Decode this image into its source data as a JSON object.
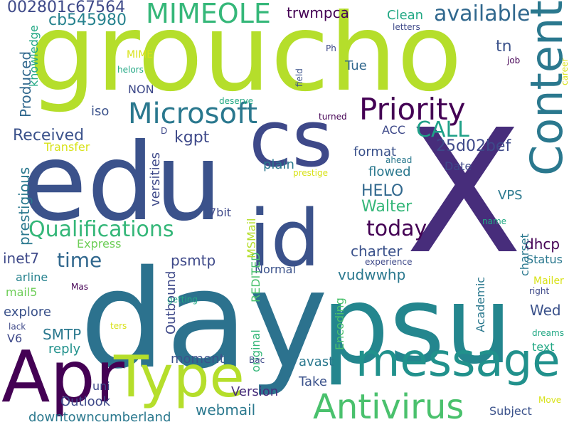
{
  "words": [
    {
      "text": "groucho",
      "color": "#b5de2b"
    },
    {
      "text": "X",
      "color": "#472d7b"
    },
    {
      "text": "day",
      "color": "#2c728e"
    },
    {
      "text": "psu",
      "color": "#24868e"
    },
    {
      "text": "edu",
      "color": "#3b528b"
    },
    {
      "text": "cs",
      "color": "#3e4989"
    },
    {
      "text": "id",
      "color": "#3b528b"
    },
    {
      "text": "Apr",
      "color": "#440154"
    },
    {
      "text": "message",
      "color": "#21918c"
    },
    {
      "text": "Type",
      "color": "#b5de2b"
    },
    {
      "text": "Content",
      "color": "#2a788e"
    },
    {
      "text": "Antivirus",
      "color": "#4ac16d"
    },
    {
      "text": "Priority",
      "color": "#440154"
    },
    {
      "text": "Microsoft",
      "color": "#2a788e"
    },
    {
      "text": "MIMEOLE",
      "color": "#35b779"
    },
    {
      "text": "Qualifications",
      "color": "#35b779"
    },
    {
      "text": "available",
      "color": "#31688e"
    },
    {
      "text": "002801c67564",
      "color": "#3e4989"
    },
    {
      "text": "cb545980",
      "color": "#26828e"
    },
    {
      "text": "CALL",
      "color": "#1fa188"
    },
    {
      "text": "today",
      "color": "#440154"
    },
    {
      "text": "time",
      "color": "#31688e"
    },
    {
      "text": "25d02bef",
      "color": "#3e4989"
    },
    {
      "text": "Received",
      "color": "#3b528b"
    },
    {
      "text": "HELO",
      "color": "#31688e"
    },
    {
      "text": "Walter",
      "color": "#35b779"
    },
    {
      "text": "trwmpca",
      "color": "#440154"
    },
    {
      "text": "kgpt",
      "color": "#3e4989"
    },
    {
      "text": "webmail",
      "color": "#2a788e"
    },
    {
      "text": "Outlook",
      "color": "#3e4989"
    },
    {
      "text": "downtowncumberland",
      "color": "#2a788e"
    },
    {
      "text": "Version",
      "color": "#472d7b"
    },
    {
      "text": "Subject",
      "color": "#3b528b"
    },
    {
      "text": "charter",
      "color": "#3b528b"
    },
    {
      "text": "dhcp",
      "color": "#440154"
    },
    {
      "text": "format",
      "color": "#3b528b"
    },
    {
      "text": "plain",
      "color": "#2a788e"
    },
    {
      "text": "flowed",
      "color": "#2a788e"
    },
    {
      "text": "inet7",
      "color": "#3e4989"
    },
    {
      "text": "psmtp",
      "color": "#3e4989"
    },
    {
      "text": "vudwwhp",
      "color": "#2a788e"
    },
    {
      "text": "Normal",
      "color": "#3b528b"
    },
    {
      "text": "Wed",
      "color": "#3b528b"
    },
    {
      "text": "SMTP",
      "color": "#2a788e"
    },
    {
      "text": "explore",
      "color": "#3b528b"
    },
    {
      "text": "moment",
      "color": "#3b528b"
    },
    {
      "text": "Take",
      "color": "#3b528b"
    },
    {
      "text": "avast",
      "color": "#2a788e"
    },
    {
      "text": "reply",
      "color": "#21918c"
    },
    {
      "text": "Produced",
      "color": "#31688e"
    },
    {
      "text": "prestigious",
      "color": "#2a788e"
    },
    {
      "text": "versities",
      "color": "#3e4989"
    },
    {
      "text": "Outbound",
      "color": "#3e4989"
    },
    {
      "text": "original",
      "color": "#35b779"
    },
    {
      "text": "REDITED",
      "color": "#4ac16d"
    },
    {
      "text": "MSMail",
      "color": "#b5de2b"
    },
    {
      "text": "Encoding",
      "color": "#4ac16d"
    },
    {
      "text": "Academic",
      "color": "#2a788e"
    },
    {
      "text": "charset",
      "color": "#2a788e"
    },
    {
      "text": "knowledge",
      "color": "#22a884"
    },
    {
      "text": "Tue",
      "color": "#31688e"
    },
    {
      "text": "tn",
      "color": "#3b528b"
    },
    {
      "text": "Clean",
      "color": "#22a884"
    },
    {
      "text": "NON",
      "color": "#3e4989"
    },
    {
      "text": "iso",
      "color": "#3b528b"
    },
    {
      "text": "ACC",
      "color": "#3e4989"
    },
    {
      "text": "Date",
      "color": "#3e4989"
    },
    {
      "text": "VPS",
      "color": "#2a788e"
    },
    {
      "text": "7bit",
      "color": "#3e4989"
    },
    {
      "text": "Status",
      "color": "#2a788e"
    },
    {
      "text": "text",
      "color": "#22a884"
    },
    {
      "text": "uni",
      "color": "#3e4989"
    },
    {
      "text": "V6",
      "color": "#3e4989"
    },
    {
      "text": "arline",
      "color": "#26828e"
    },
    {
      "text": "mail5",
      "color": "#6ece58"
    },
    {
      "text": "Express",
      "color": "#6ece58"
    },
    {
      "text": "Transfer",
      "color": "#d8e219"
    },
    {
      "text": "Mailer",
      "color": "#d8e219"
    },
    {
      "text": "MIME",
      "color": "#d8e219"
    },
    {
      "text": "Ph",
      "color": "#3e4989"
    },
    {
      "text": "D",
      "color": "#3e4989"
    },
    {
      "text": "deserve",
      "color": "#22a884"
    },
    {
      "text": "turned",
      "color": "#440154"
    },
    {
      "text": "ahead",
      "color": "#2a788e"
    },
    {
      "text": "letters",
      "color": "#3e4989"
    },
    {
      "text": "job",
      "color": "#440154"
    },
    {
      "text": "field",
      "color": "#3b528b"
    },
    {
      "text": "career",
      "color": "#d8e219"
    },
    {
      "text": "helors",
      "color": "#22a884"
    },
    {
      "text": "prestige",
      "color": "#d8e219"
    },
    {
      "text": "experience",
      "color": "#3e4989"
    },
    {
      "text": "name",
      "color": "#22a884"
    },
    {
      "text": "right",
      "color": "#3e4989"
    },
    {
      "text": "Mas",
      "color": "#440154"
    },
    {
      "text": "getting",
      "color": "#22a884"
    },
    {
      "text": "lack",
      "color": "#3e4989"
    },
    {
      "text": "ters",
      "color": "#d8e219"
    },
    {
      "text": "Bac",
      "color": "#3e4989"
    },
    {
      "text": "dreams",
      "color": "#22a884"
    },
    {
      "text": "Move",
      "color": "#d8e219"
    }
  ]
}
